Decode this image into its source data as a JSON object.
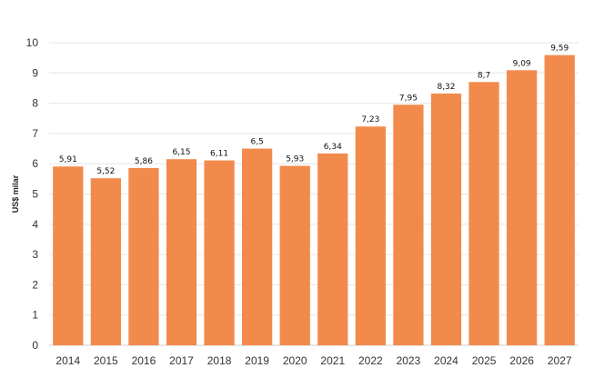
{
  "chart_data": {
    "type": "bar",
    "categories": [
      "2014",
      "2015",
      "2016",
      "2017",
      "2018",
      "2019",
      "2020",
      "2021",
      "2022",
      "2023",
      "2024",
      "2025",
      "2026",
      "2027"
    ],
    "values": [
      5.91,
      5.52,
      5.86,
      6.15,
      6.11,
      6.5,
      5.93,
      6.34,
      7.23,
      7.95,
      8.32,
      8.7,
      9.09,
      9.59
    ],
    "value_labels": [
      "5,91",
      "5,52",
      "5,86",
      "6,15",
      "6,11",
      "6,5",
      "5,93",
      "6,34",
      "7,23",
      "7,95",
      "8,32",
      "8,7",
      "9,09",
      "9,59"
    ],
    "ylabel": "US$ milar",
    "xlabel": "",
    "ylim": [
      0,
      10
    ],
    "yticks": [
      "0",
      "1",
      "2",
      "3",
      "4",
      "5",
      "6",
      "7",
      "8",
      "9",
      "10"
    ],
    "grid": true,
    "legend": "none",
    "colors": {
      "bar": "#F28A4C",
      "grid": "#e6e6e6",
      "axis": "#cccccc"
    }
  }
}
